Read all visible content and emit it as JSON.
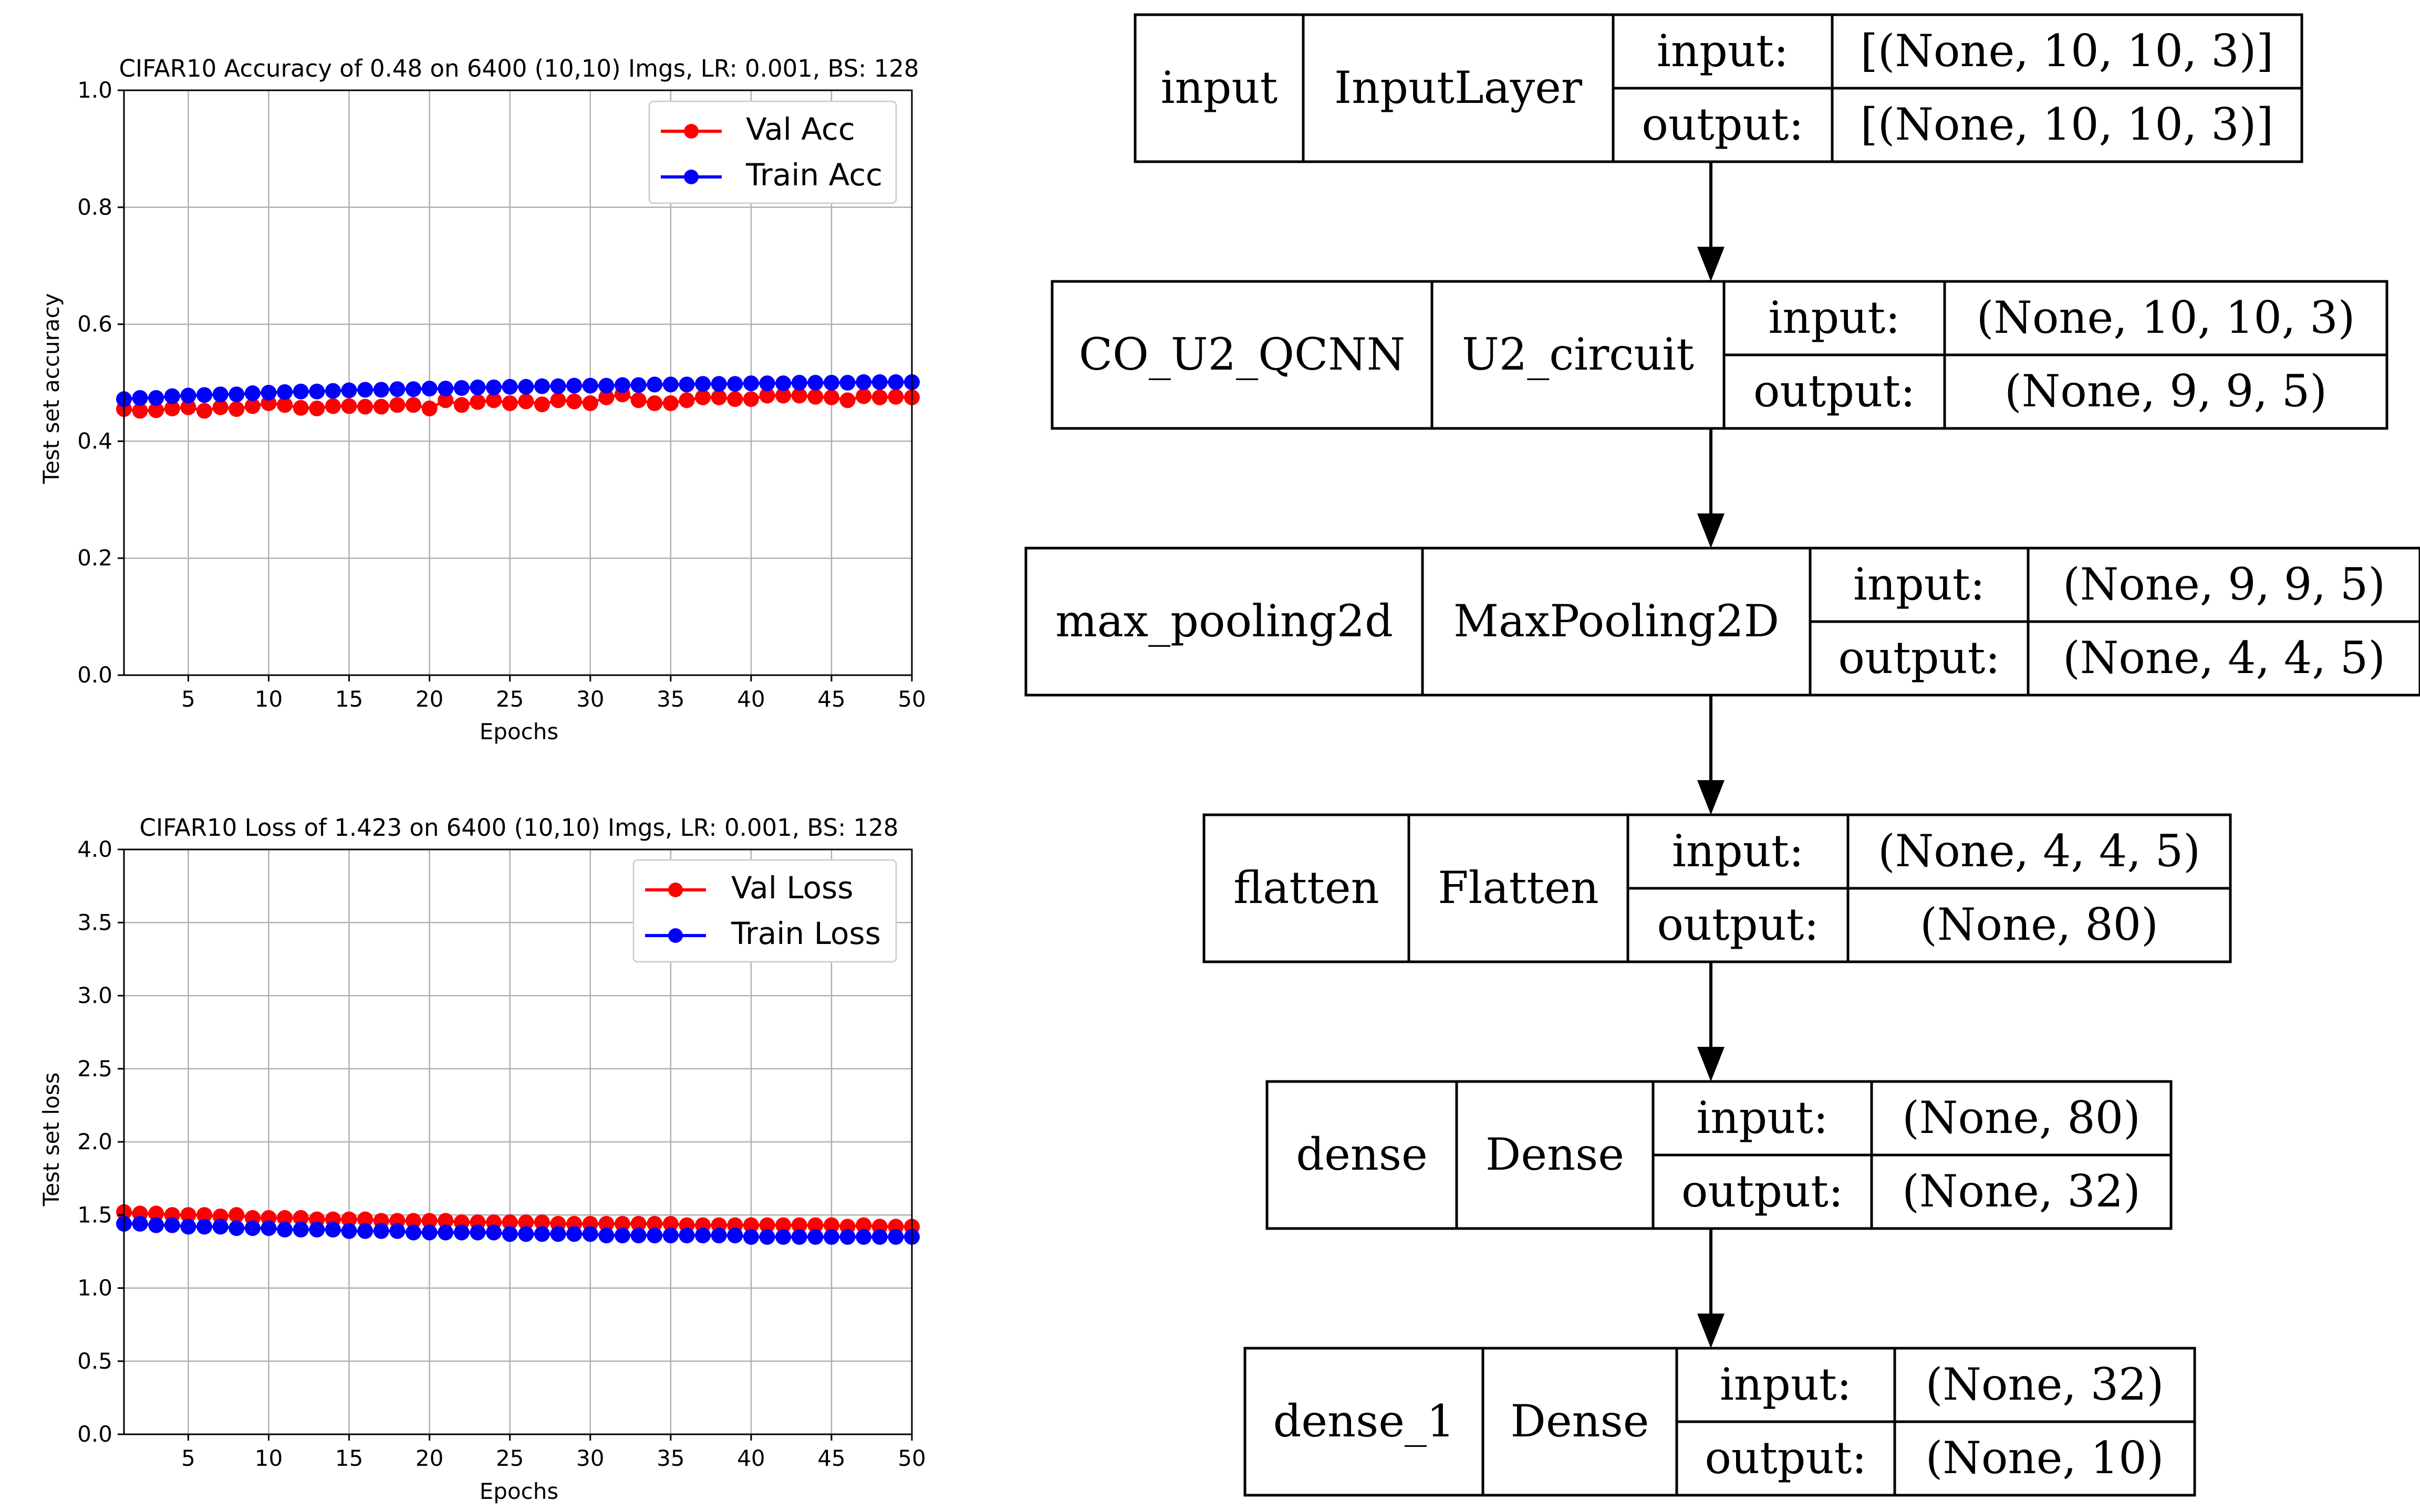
{
  "chart_data": [
    {
      "type": "line",
      "title": "CIFAR10 Accuracy of 0.48 on 6400 (10,10) Imgs, LR: 0.001, BS: 128",
      "xlabel": "Epochs",
      "ylabel": "Test set accuracy",
      "xlim": [
        1,
        50
      ],
      "ylim": [
        0.0,
        1.0
      ],
      "xticks": [
        5,
        10,
        15,
        20,
        25,
        30,
        35,
        40,
        45,
        50
      ],
      "yticks": [
        "0.0",
        "0.2",
        "0.4",
        "0.6",
        "0.8",
        "1.0"
      ],
      "grid": true,
      "legend_position": "top-right",
      "x": [
        1,
        2,
        3,
        4,
        5,
        6,
        7,
        8,
        9,
        10,
        11,
        12,
        13,
        14,
        15,
        16,
        17,
        18,
        19,
        20,
        21,
        22,
        23,
        24,
        25,
        26,
        27,
        28,
        29,
        30,
        31,
        32,
        33,
        34,
        35,
        36,
        37,
        38,
        39,
        40,
        41,
        42,
        43,
        44,
        45,
        46,
        47,
        48,
        49,
        50
      ],
      "series": [
        {
          "name": "Val Acc",
          "color": "#ff0000",
          "values": [
            0.455,
            0.452,
            0.453,
            0.456,
            0.458,
            0.452,
            0.458,
            0.455,
            0.46,
            0.465,
            0.462,
            0.457,
            0.456,
            0.46,
            0.46,
            0.459,
            0.459,
            0.462,
            0.462,
            0.456,
            0.47,
            0.462,
            0.467,
            0.47,
            0.465,
            0.468,
            0.463,
            0.47,
            0.468,
            0.465,
            0.475,
            0.48,
            0.47,
            0.465,
            0.465,
            0.47,
            0.475,
            0.475,
            0.472,
            0.472,
            0.478,
            0.478,
            0.478,
            0.476,
            0.475,
            0.47,
            0.477,
            0.475,
            0.476,
            0.475
          ]
        },
        {
          "name": "Train Acc",
          "color": "#0000ff",
          "values": [
            0.472,
            0.474,
            0.474,
            0.477,
            0.478,
            0.479,
            0.48,
            0.48,
            0.482,
            0.483,
            0.484,
            0.485,
            0.485,
            0.486,
            0.487,
            0.488,
            0.488,
            0.489,
            0.489,
            0.49,
            0.49,
            0.491,
            0.492,
            0.492,
            0.493,
            0.493,
            0.494,
            0.494,
            0.495,
            0.495,
            0.495,
            0.496,
            0.496,
            0.497,
            0.497,
            0.497,
            0.498,
            0.498,
            0.498,
            0.499,
            0.499,
            0.499,
            0.5,
            0.5,
            0.5,
            0.5,
            0.501,
            0.501,
            0.501,
            0.501
          ]
        }
      ]
    },
    {
      "type": "line",
      "title": "CIFAR10 Loss of 1.423 on 6400 (10,10) Imgs, LR: 0.001, BS: 128",
      "xlabel": "Epochs",
      "ylabel": "Test set loss",
      "xlim": [
        1,
        50
      ],
      "ylim": [
        0.0,
        4.0
      ],
      "xticks": [
        5,
        10,
        15,
        20,
        25,
        30,
        35,
        40,
        45,
        50
      ],
      "yticks": [
        "0.0",
        "0.5",
        "1.0",
        "1.5",
        "2.0",
        "2.5",
        "3.0",
        "3.5",
        "4.0"
      ],
      "grid": true,
      "legend_position": "top-right",
      "x": [
        1,
        2,
        3,
        4,
        5,
        6,
        7,
        8,
        9,
        10,
        11,
        12,
        13,
        14,
        15,
        16,
        17,
        18,
        19,
        20,
        21,
        22,
        23,
        24,
        25,
        26,
        27,
        28,
        29,
        30,
        31,
        32,
        33,
        34,
        35,
        36,
        37,
        38,
        39,
        40,
        41,
        42,
        43,
        44,
        45,
        46,
        47,
        48,
        49,
        50
      ],
      "series": [
        {
          "name": "Val Loss",
          "color": "#ff0000",
          "values": [
            1.52,
            1.51,
            1.51,
            1.5,
            1.5,
            1.5,
            1.49,
            1.5,
            1.48,
            1.48,
            1.48,
            1.48,
            1.47,
            1.47,
            1.47,
            1.47,
            1.46,
            1.46,
            1.46,
            1.46,
            1.46,
            1.45,
            1.45,
            1.45,
            1.45,
            1.45,
            1.45,
            1.44,
            1.44,
            1.44,
            1.44,
            1.44,
            1.44,
            1.44,
            1.44,
            1.43,
            1.43,
            1.43,
            1.43,
            1.43,
            1.43,
            1.43,
            1.43,
            1.43,
            1.43,
            1.42,
            1.43,
            1.42,
            1.42,
            1.42
          ]
        },
        {
          "name": "Train Loss",
          "color": "#0000ff",
          "values": [
            1.44,
            1.44,
            1.43,
            1.43,
            1.42,
            1.42,
            1.42,
            1.41,
            1.41,
            1.41,
            1.4,
            1.4,
            1.4,
            1.4,
            1.39,
            1.39,
            1.39,
            1.39,
            1.38,
            1.38,
            1.38,
            1.38,
            1.38,
            1.38,
            1.37,
            1.37,
            1.37,
            1.37,
            1.37,
            1.37,
            1.36,
            1.36,
            1.36,
            1.36,
            1.36,
            1.36,
            1.36,
            1.36,
            1.36,
            1.35,
            1.35,
            1.35,
            1.35,
            1.35,
            1.35,
            1.35,
            1.35,
            1.35,
            1.35,
            1.35
          ]
        }
      ]
    }
  ],
  "model_diagram": {
    "input_header": "input:",
    "output_header": "output:",
    "layers": [
      {
        "name": "input",
        "type": "InputLayer",
        "input": "[(None, 10, 10, 3)]",
        "output": "[(None, 10, 10, 3)]"
      },
      {
        "name": "CO_U2_QCNN",
        "type": "U2_circuit",
        "input": "(None, 10, 10, 3)",
        "output": "(None, 9, 9, 5)"
      },
      {
        "name": "max_pooling2d",
        "type": "MaxPooling2D",
        "input": "(None, 9, 9, 5)",
        "output": "(None, 4, 4, 5)"
      },
      {
        "name": "flatten",
        "type": "Flatten",
        "input": "(None, 4, 4, 5)",
        "output": "(None, 80)"
      },
      {
        "name": "dense",
        "type": "Dense",
        "input": "(None, 80)",
        "output": "(None, 32)"
      },
      {
        "name": "dense_1",
        "type": "Dense",
        "input": "(None, 32)",
        "output": "(None, 10)"
      }
    ]
  }
}
